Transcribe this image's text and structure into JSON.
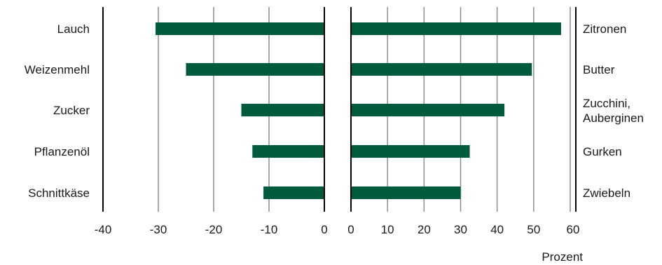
{
  "chart_data": [
    {
      "type": "bar",
      "orientation": "horizontal",
      "categories": [
        "Lauch",
        "Weizenmehl",
        "Zucker",
        "Pflanzenöl",
        "Schnittkäse"
      ],
      "values": [
        -30.5,
        -25,
        -15,
        -13,
        -11
      ],
      "xlim": [
        -40,
        0
      ],
      "xticks": [
        "-40",
        "-30",
        "-20",
        "-10",
        "0"
      ],
      "color": "#005a3c",
      "grid": true
    },
    {
      "type": "bar",
      "orientation": "horizontal",
      "categories": [
        "Zitronen",
        "Butter",
        "Zucchini, Auberginen",
        "Gurken",
        "Zwiebeln"
      ],
      "values": [
        57.5,
        49.5,
        42,
        32.5,
        30
      ],
      "xlim": [
        0,
        60
      ],
      "xticks": [
        "0",
        "10",
        "20",
        "30",
        "40",
        "50",
        "60"
      ],
      "xlabel": "Prozent",
      "color": "#005a3c",
      "grid": true
    }
  ]
}
